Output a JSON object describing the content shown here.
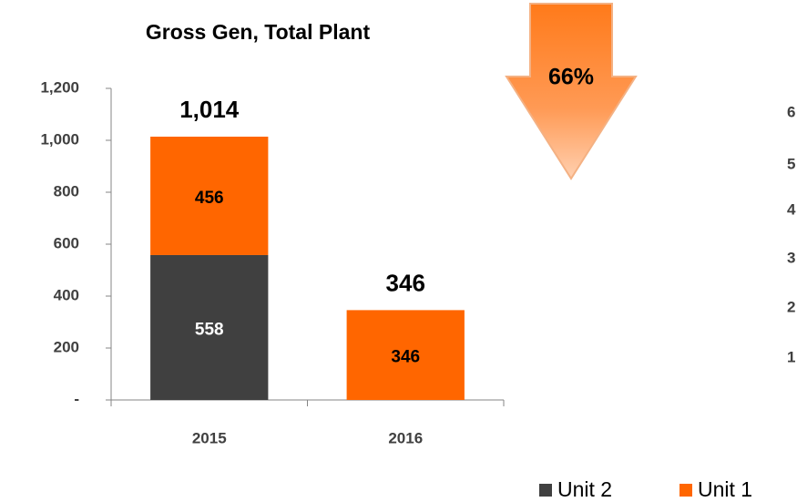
{
  "chart_data": {
    "type": "stacked_bar",
    "title": "Gross Gen, Total Plant",
    "categories": [
      "2015",
      "2016"
    ],
    "series": [
      {
        "name": "Unit 2",
        "color": "#404040",
        "values": [
          558,
          null
        ]
      },
      {
        "name": "Unit 1",
        "color": "#ff6600",
        "values": [
          456,
          346
        ]
      }
    ],
    "total_labels": [
      "1,014",
      "346"
    ],
    "ylim": [
      0,
      1200
    ],
    "yticks": [
      {
        "value": 0,
        "label": "-"
      },
      200,
      400,
      600,
      800,
      {
        "value": 1000,
        "label": "1,000"
      },
      {
        "value": 1200,
        "label": "1,200"
      }
    ],
    "annotation": "66%",
    "legend": "bottom-right"
  },
  "partial_axis_labels": [
    "6",
    "5",
    "4",
    "3",
    "2",
    "1"
  ]
}
